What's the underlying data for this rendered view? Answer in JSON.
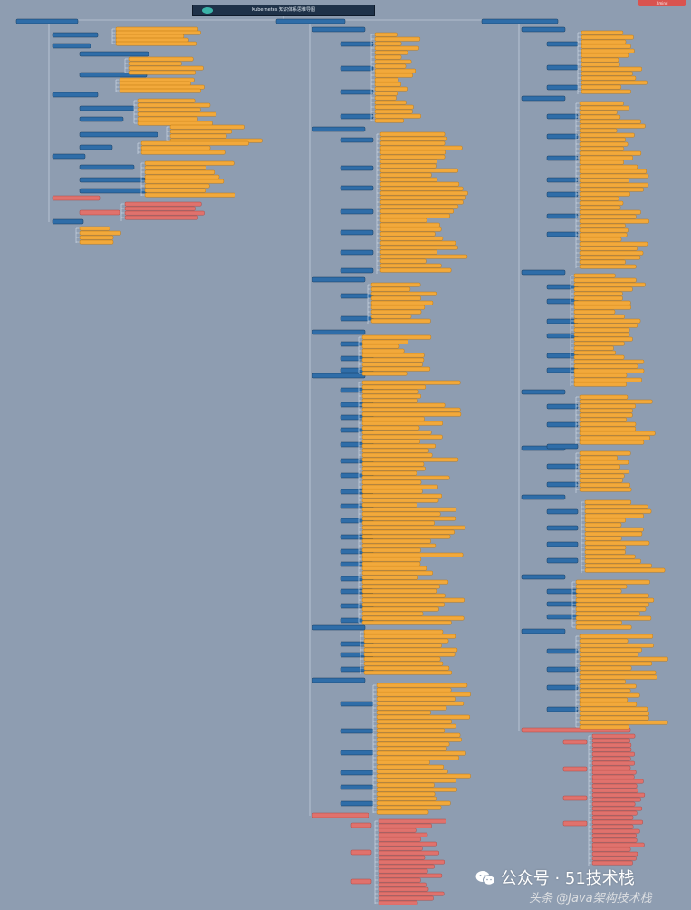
{
  "title": "Kubernetes 知识体系思维导图",
  "corner_tag": "Xmind",
  "watermark": "公众号 · 51技术栈",
  "watermark2": "头条 @Java架构技术栈",
  "colors": {
    "background": "#8e9db1",
    "branch": "#2f6da8",
    "branch_border": "#163a5c",
    "leaf": "#f2a93b",
    "leaf_border": "#c07a12",
    "alert": "#e0726d",
    "alert_border": "#b14944",
    "connector": "#d4deea"
  },
  "icons": [
    "wechat-icon",
    "logo-icon"
  ]
}
